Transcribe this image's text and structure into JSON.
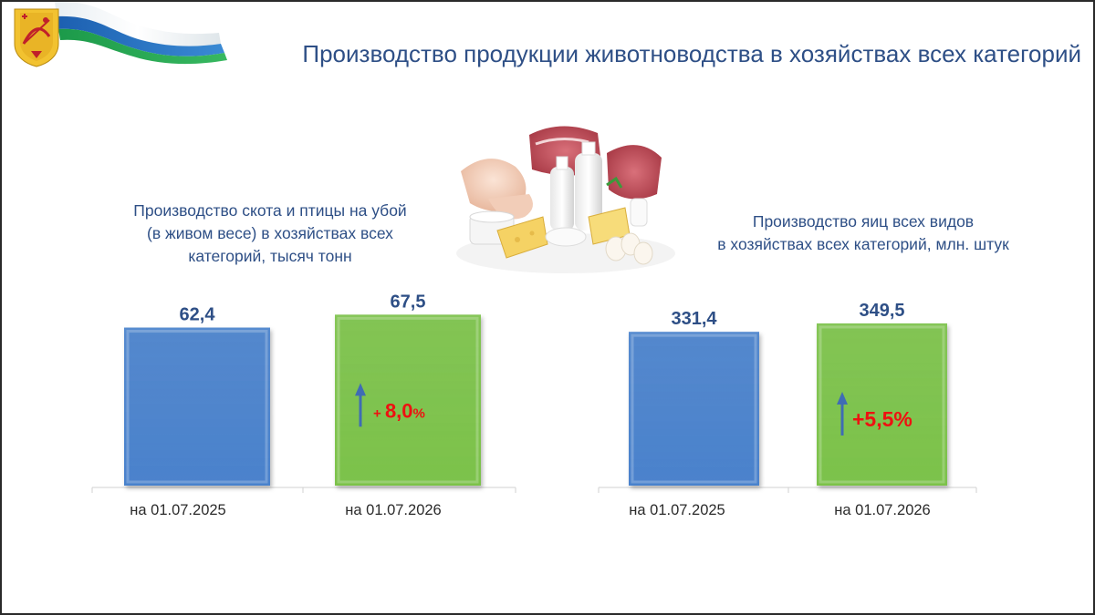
{
  "title": "Производство продукции животноводства в хозяйствах всех категорий",
  "icons": {
    "logo": "kirov-coat-of-arms-with-flag-ribbon",
    "illustration": "meat-dairy-eggs-food-illustration",
    "growth_arrow": "up-arrow-icon"
  },
  "colors": {
    "title": "#2e4f86",
    "bar_2025": "#4a82cc",
    "bar_2026": "#7cc24a",
    "growth_text": "#ee1111",
    "growth_arrow": "#3f6cb4"
  },
  "chart_data": [
    {
      "type": "bar",
      "title": "Производство скота и птицы на убой\n(в живом весе) в хозяйствах всех\nкатегорий, тысяч тонн",
      "categories": [
        "на 01.07.2025",
        "на 01.07.2026"
      ],
      "values": [
        62.4,
        67.5
      ],
      "value_labels": [
        "62,4",
        "67,5"
      ],
      "growth_label": "+ 8,0",
      "growth_suffix": "%",
      "ylim": [
        0,
        70
      ],
      "grid": false,
      "legend": "none"
    },
    {
      "type": "bar",
      "title": "Производство яиц всех видов\nв хозяйствах всех категорий,  млн. штук",
      "categories": [
        "на 01.07.2025",
        "на 01.07.2026"
      ],
      "values": [
        331.4,
        349.5
      ],
      "value_labels": [
        "331,4",
        "349,5"
      ],
      "growth_label": "+5,5%",
      "growth_suffix": "",
      "ylim": [
        0,
        360
      ],
      "grid": false,
      "legend": "none"
    }
  ]
}
